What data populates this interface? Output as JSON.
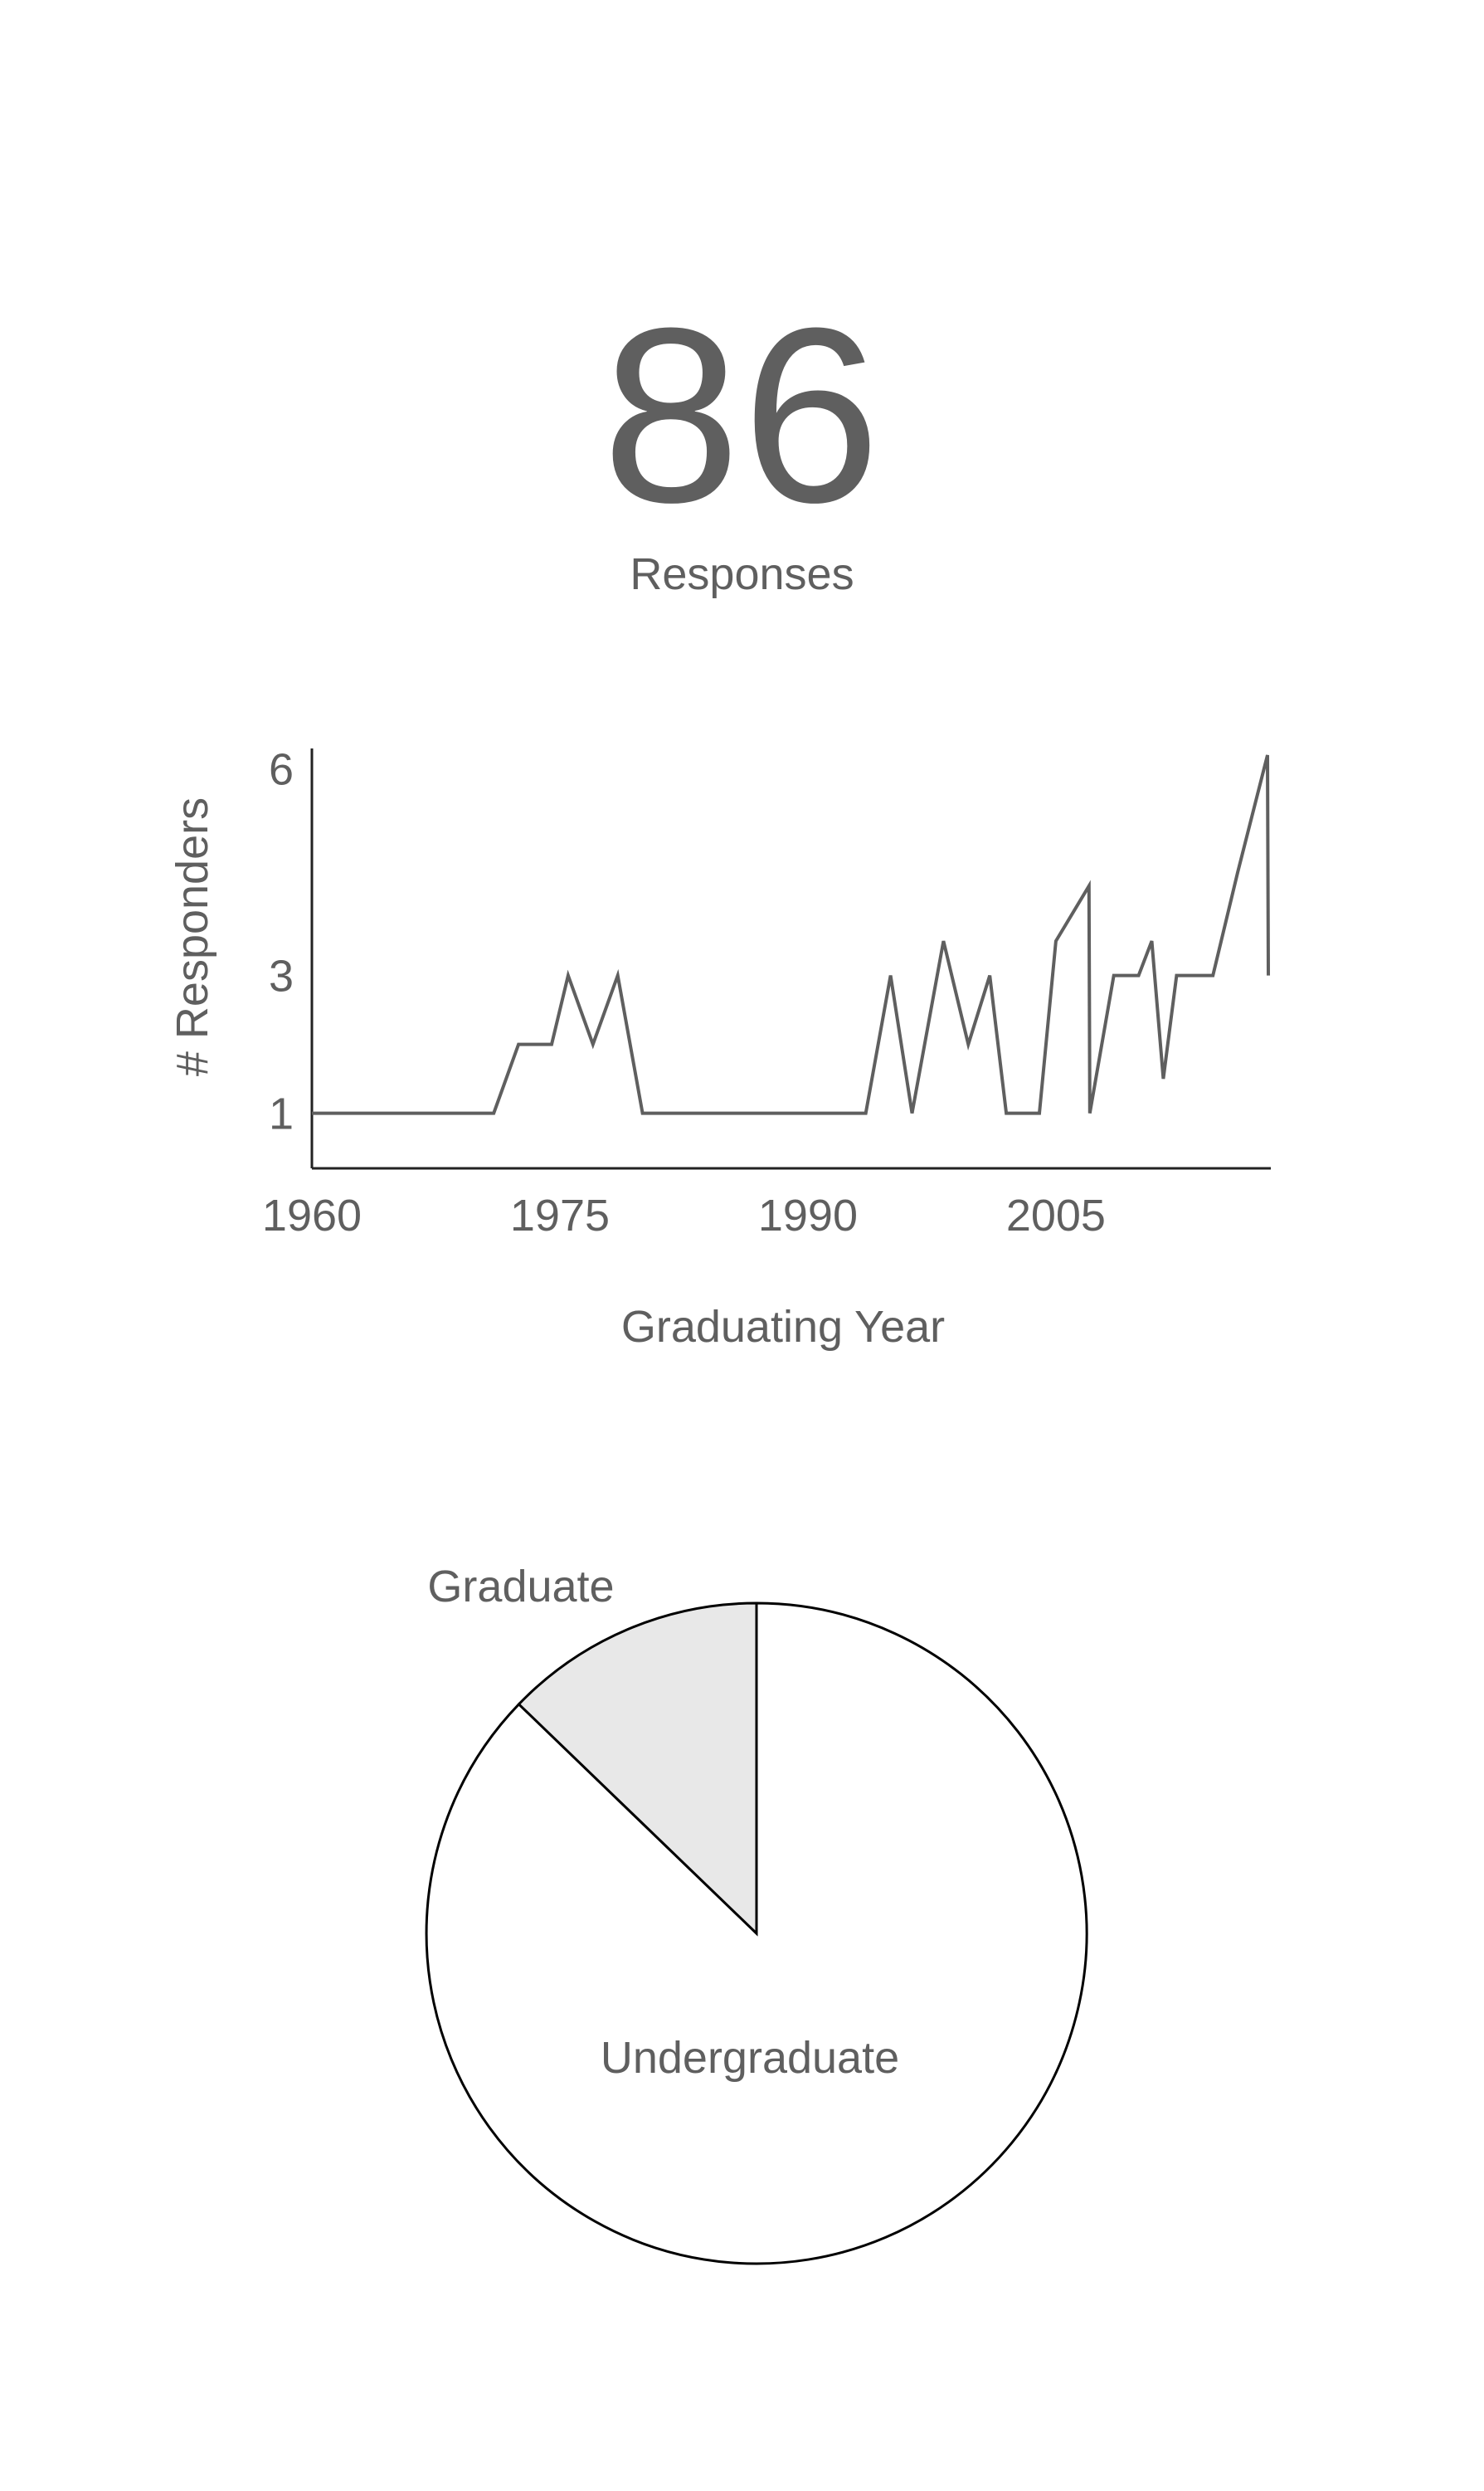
{
  "summary": {
    "count": "86",
    "label": "Responses"
  },
  "chart_data": [
    {
      "type": "line",
      "xlabel": "Graduating Year",
      "ylabel": "# Responders",
      "xlim": [
        1960,
        2018
      ],
      "ylim": [
        0.2,
        6.2
      ],
      "x_ticks": [
        "1960",
        "1975",
        "1990",
        "2005"
      ],
      "y_ticks": [
        "1",
        "3",
        "6"
      ],
      "x": [
        1960,
        1971,
        1972.5,
        1974.5,
        1975.5,
        1977,
        1978.5,
        1980,
        1993.5,
        1995,
        1996.3,
        1998.2,
        1999.7,
        2001,
        2002,
        2004,
        2005,
        2007,
        2007.05,
        2008.5,
        2010,
        2010.8,
        2011.5,
        2012.3,
        2014.5,
        2016,
        2017.8,
        2017.85
      ],
      "y": [
        1,
        1,
        2,
        2,
        3,
        2,
        3,
        1,
        1,
        3,
        1,
        3.5,
        2,
        3,
        1,
        1,
        3.5,
        4.3,
        1,
        3,
        3,
        3.5,
        1.5,
        3,
        3,
        4.5,
        6.2,
        3
      ],
      "grid": false,
      "line_color": "#5f5f5f"
    },
    {
      "type": "pie",
      "slices": [
        {
          "label": "Graduate",
          "value": 11
        },
        {
          "label": "Undergraduate",
          "value": 75
        }
      ],
      "colors": {
        "Graduate": "#e8e8e8",
        "Undergraduate": "#ffffff"
      },
      "stroke_color": "#000000"
    }
  ]
}
